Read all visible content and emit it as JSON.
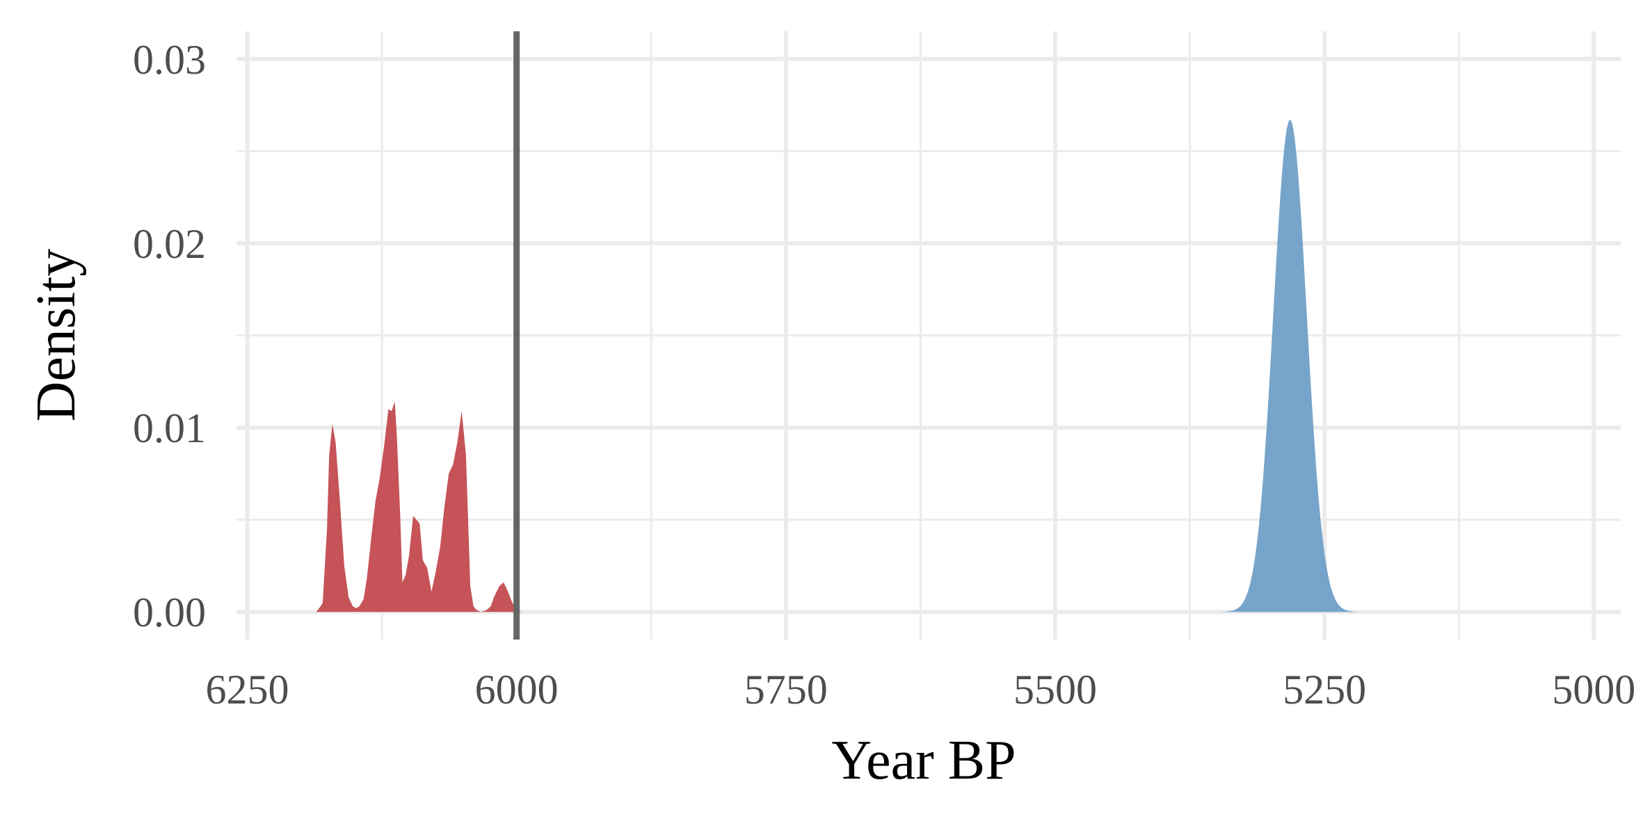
{
  "chart_data": {
    "type": "area",
    "title": "",
    "xlabel": "Year BP",
    "ylabel": "Density",
    "x_reversed": true,
    "xlim": [
      6260,
      4975
    ],
    "ylim": [
      -0.0015,
      0.0315
    ],
    "x_ticks": [
      6250,
      6000,
      5750,
      5500,
      5250,
      5000
    ],
    "x_tick_labels": [
      "6250",
      "6000",
      "5750",
      "5500",
      "5250",
      "5000"
    ],
    "x_minor_ticks": [
      6125,
      5875,
      5625,
      5375,
      5125
    ],
    "y_ticks": [
      0,
      0.01,
      0.02,
      0.03
    ],
    "y_tick_labels": [
      "0.00",
      "0.01",
      "0.02",
      "0.03"
    ],
    "y_minor_ticks": [
      0.005,
      0.015,
      0.025
    ],
    "grid": true,
    "legend": "none",
    "reference_line": {
      "x": 6000,
      "color": "#666666"
    },
    "series": [
      {
        "color": "#c0444a",
        "points": [
          [
            6186,
            0
          ],
          [
            6182,
            0.0003
          ],
          [
            6180,
            0.0005
          ],
          [
            6176,
            0.0045
          ],
          [
            6174,
            0.0085
          ],
          [
            6171,
            0.0102
          ],
          [
            6168,
            0.0092
          ],
          [
            6164,
            0.006
          ],
          [
            6160,
            0.0025
          ],
          [
            6156,
            0.0008
          ],
          [
            6152,
            0.0003
          ],
          [
            6149,
            0.0002
          ],
          [
            6146,
            0.0003
          ],
          [
            6142,
            0.0007
          ],
          [
            6139,
            0.0018
          ],
          [
            6135,
            0.004
          ],
          [
            6131,
            0.006
          ],
          [
            6127,
            0.0073
          ],
          [
            6123,
            0.009
          ],
          [
            6119,
            0.011
          ],
          [
            6116,
            0.0109
          ],
          [
            6113,
            0.0114
          ],
          [
            6111,
            0.0094
          ],
          [
            6108,
            0.0052
          ],
          [
            6106,
            0.0016
          ],
          [
            6103,
            0.002
          ],
          [
            6100,
            0.003
          ],
          [
            6096,
            0.0052
          ],
          [
            6090,
            0.0048
          ],
          [
            6087,
            0.0028
          ],
          [
            6083,
            0.0024
          ],
          [
            6079,
            0.0011
          ],
          [
            6075,
            0.0022
          ],
          [
            6071,
            0.0035
          ],
          [
            6067,
            0.0057
          ],
          [
            6063,
            0.0075
          ],
          [
            6059,
            0.008
          ],
          [
            6055,
            0.0092
          ],
          [
            6051,
            0.0109
          ],
          [
            6047,
            0.0085
          ],
          [
            6043,
            0.0014
          ],
          [
            6040,
            0.0003
          ],
          [
            6037,
            0.0001
          ],
          [
            6033,
            0
          ],
          [
            6028,
            0.0001
          ],
          [
            6024,
            0.0003
          ],
          [
            6021,
            0.0008
          ],
          [
            6016,
            0.0014
          ],
          [
            6012,
            0.0016
          ],
          [
            6008,
            0.0011
          ],
          [
            6004,
            0.0005
          ],
          [
            6000,
            0.0002
          ],
          [
            5996,
            0
          ],
          [
            5993,
            0
          ]
        ]
      },
      {
        "color": "#6a9cc6",
        "mode": "gaussian",
        "mean": 5282,
        "peak": 0.0267,
        "sd": 15.5,
        "from": 5370,
        "to": 5190
      }
    ]
  }
}
